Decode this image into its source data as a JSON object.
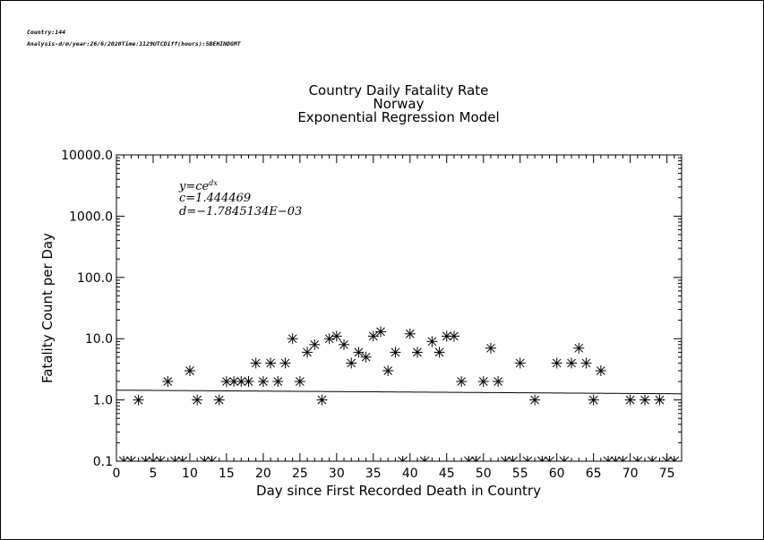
{
  "header": {
    "line1": "Country:144",
    "line2": "Analysis-d/m/year:26/6/2020Time:1129UTCDiff(hours):5BEHINDGMT"
  },
  "equation": {
    "formula": "y=ce",
    "exponent": "dx",
    "c_line": "c=1.444469",
    "d_line": "d=−1.7845134E−03"
  },
  "chart_data": {
    "type": "scatter",
    "title": [
      "Country Daily Fatality Rate",
      "Norway",
      "Exponential Regression Model"
    ],
    "xlabel": "Day since First Recorded Death in Country",
    "ylabel": "Fatality Count per Day",
    "xlim": [
      0,
      77
    ],
    "ylim": [
      0.1,
      10000
    ],
    "yscale": "log",
    "xticks": [
      "0",
      "5",
      "10",
      "15",
      "20",
      "25",
      "30",
      "35",
      "40",
      "45",
      "50",
      "55",
      "60",
      "65",
      "70",
      "75"
    ],
    "yticks": [
      "0.1",
      "1.0",
      "10.0",
      "100.0",
      "1000.0",
      "10000.0"
    ],
    "grid": false,
    "marker": "asterisk",
    "points_x": [
      3,
      7,
      10,
      11,
      14,
      15,
      16,
      17,
      18,
      19,
      20,
      21,
      22,
      23,
      24,
      25,
      26,
      27,
      28,
      29,
      30,
      31,
      32,
      33,
      34,
      35,
      36,
      37,
      38,
      40,
      41,
      43,
      44,
      45,
      46,
      47,
      50,
      51,
      52,
      55,
      57,
      60,
      62,
      63,
      64,
      65,
      66,
      70,
      72,
      74
    ],
    "points_y": [
      1,
      2,
      3,
      1,
      1,
      2,
      2,
      2,
      2,
      4,
      2,
      4,
      2,
      4,
      10,
      2,
      6,
      8,
      1,
      10,
      11,
      8,
      4,
      6,
      5,
      11,
      13,
      3,
      6,
      12,
      6,
      9,
      6,
      11,
      11,
      2,
      2,
      7,
      2,
      4,
      1,
      4,
      4,
      7,
      4,
      1,
      3,
      1,
      1,
      1
    ],
    "zero_days": [
      1,
      2,
      4,
      5,
      6,
      8,
      9,
      12,
      13,
      39,
      42,
      48,
      49,
      53,
      54,
      56,
      58,
      59,
      61,
      67,
      68,
      69,
      71,
      73,
      75,
      76
    ],
    "fit": {
      "c": 1.444469,
      "d": -0.0017845134
    }
  }
}
